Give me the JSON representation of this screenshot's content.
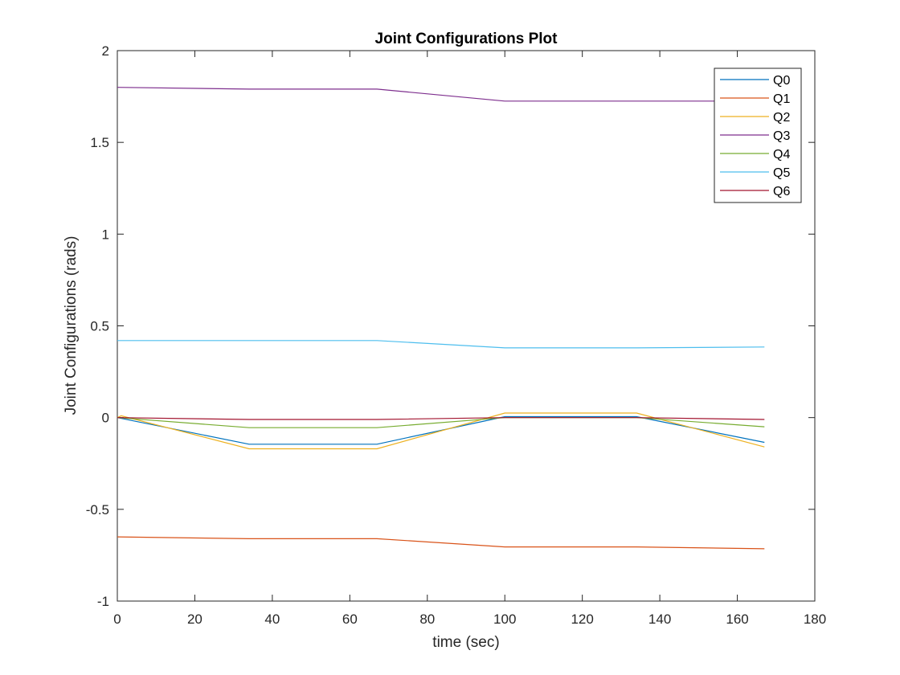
{
  "chart_data": {
    "type": "line",
    "title": "Joint Configurations Plot",
    "xlabel": "time (sec)",
    "ylabel": "Joint Configurations (rads)",
    "xlim": [
      0,
      180
    ],
    "ylim": [
      -1,
      2
    ],
    "xticks": [
      0,
      20,
      40,
      60,
      80,
      100,
      120,
      140,
      160,
      180
    ],
    "yticks": [
      -1,
      -0.5,
      0,
      0.5,
      1,
      1.5,
      2
    ],
    "xtick_labels": [
      "0",
      "20",
      "40",
      "60",
      "80",
      "100",
      "120",
      "140",
      "160",
      "180"
    ],
    "ytick_labels": [
      "-1",
      "-0.5",
      "0",
      "0.5",
      "1",
      "1.5",
      "2"
    ],
    "grid": false,
    "legend_position": "top-right",
    "series": [
      {
        "name": "Q0",
        "color": "#0072BD",
        "x": [
          0,
          34,
          67,
          100,
          134,
          167
        ],
        "y": [
          0.0,
          -0.145,
          -0.145,
          0.005,
          0.005,
          -0.135
        ]
      },
      {
        "name": "Q1",
        "color": "#D95319",
        "x": [
          0,
          34,
          67,
          100,
          134,
          167
        ],
        "y": [
          -0.65,
          -0.66,
          -0.66,
          -0.705,
          -0.705,
          -0.715
        ]
      },
      {
        "name": "Q2",
        "color": "#EDB120",
        "x": [
          0,
          1,
          34,
          67,
          100,
          134,
          167
        ],
        "y": [
          0.0,
          0.01,
          -0.17,
          -0.17,
          0.025,
          0.025,
          -0.16
        ]
      },
      {
        "name": "Q3",
        "color": "#7E2F8E",
        "x": [
          0,
          34,
          67,
          100,
          134,
          167
        ],
        "y": [
          1.8,
          1.79,
          1.79,
          1.725,
          1.725,
          1.725
        ]
      },
      {
        "name": "Q4",
        "color": "#77AC30",
        "x": [
          0,
          34,
          67,
          100,
          134,
          167
        ],
        "y": [
          0.0,
          -0.055,
          -0.055,
          0.0,
          0.0,
          -0.05
        ]
      },
      {
        "name": "Q5",
        "color": "#4DBEEE",
        "x": [
          0,
          34,
          67,
          100,
          134,
          167
        ],
        "y": [
          0.42,
          0.42,
          0.42,
          0.38,
          0.38,
          0.385
        ]
      },
      {
        "name": "Q6",
        "color": "#A2142F",
        "x": [
          0,
          34,
          67,
          100,
          134,
          167
        ],
        "y": [
          0.0,
          -0.01,
          -0.01,
          0.0,
          0.0,
          -0.01
        ]
      }
    ]
  }
}
